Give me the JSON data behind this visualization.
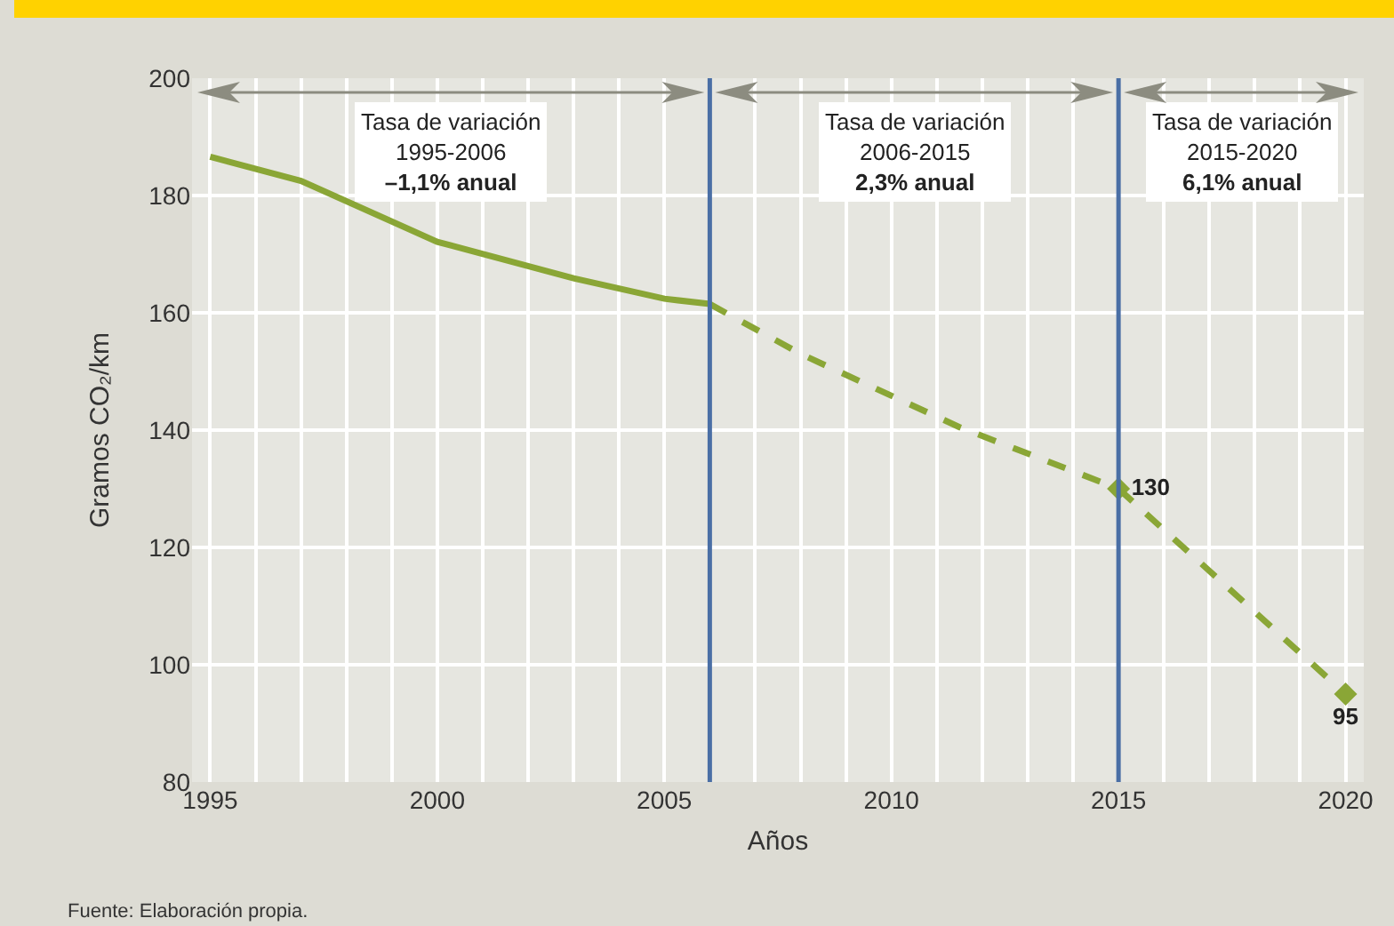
{
  "chart_data": {
    "type": "line",
    "xlabel": "Años",
    "ylabel": "Gramos CO₂/km",
    "series": [
      {
        "color": "#8aa636",
        "line_style": "solid",
        "marker": "none",
        "x": [
          1995,
          1997,
          2000,
          2003,
          2005,
          2006
        ],
        "values": [
          186.6,
          182.5,
          172.1,
          165.9,
          162.4,
          161.5
        ]
      },
      {
        "color": "#8aa636",
        "line_style": "dashed",
        "marker": "none",
        "x": [
          2006,
          2008,
          2011.5,
          2015
        ],
        "values": [
          161.5,
          153,
          140.5,
          130
        ]
      },
      {
        "color": "#8aa636",
        "line_style": "dashed",
        "marker": "diamond",
        "x": [
          2015,
          2020
        ],
        "values": [
          130,
          95
        ],
        "value_labels": [
          "130",
          "95"
        ]
      }
    ],
    "xlim": [
      1994.6,
      2020.4
    ],
    "xticks": [
      1995,
      {
        "value": 1996,
        "label": null
      },
      {
        "value": 1997,
        "label": null
      },
      {
        "value": 1998,
        "label": null
      },
      {
        "value": 1999,
        "label": null
      },
      2000,
      {
        "value": 2001,
        "label": null
      },
      {
        "value": 2002,
        "label": null
      },
      {
        "value": 2003,
        "label": null
      },
      {
        "value": 2004,
        "label": null
      },
      2005,
      {
        "value": 2007,
        "label": null
      },
      {
        "value": 2008,
        "label": null
      },
      {
        "value": 2009,
        "label": null
      },
      2010,
      {
        "value": 2011,
        "label": null
      },
      {
        "value": 2012,
        "label": null
      },
      {
        "value": 2013,
        "label": null
      },
      {
        "value": 2014,
        "label": null
      },
      2015,
      {
        "value": 2016,
        "label": null
      },
      {
        "value": 2017,
        "label": null
      },
      {
        "value": 2018,
        "label": null
      },
      {
        "value": 2019,
        "label": null
      },
      2020
    ],
    "ylim": [
      80,
      200
    ],
    "yticks": [
      80,
      100,
      120,
      140,
      160,
      180,
      200
    ],
    "grid": true,
    "ref_lines": [
      {
        "axis": "x",
        "value": 2006,
        "color": "#4a6fa5"
      },
      {
        "axis": "x",
        "value": 2015,
        "color": "#4a6fa5"
      }
    ],
    "annotations": [
      "Tasa de variación\n1995-2006\n–1,1% anual",
      "Tasa de variación\n2006-2015\n2,3% anual",
      "Tasa de variación\n2015-2020\n6,1% anual",
      "Fuente: Elaboración propia."
    ]
  }
}
